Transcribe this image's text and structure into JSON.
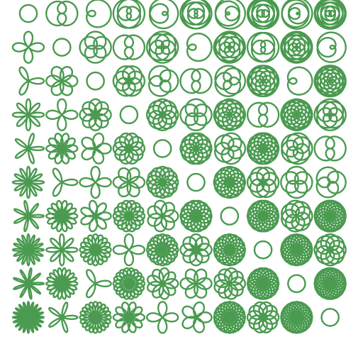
{
  "figure": {
    "stroke_color": "#4a9a50",
    "background": "#ffffff",
    "rows": 10,
    "cols": 10,
    "row_param_range": [
      1,
      10
    ],
    "col_param_range": [
      1,
      10
    ],
    "curve_family": "rose",
    "diagonal": "circle"
  }
}
